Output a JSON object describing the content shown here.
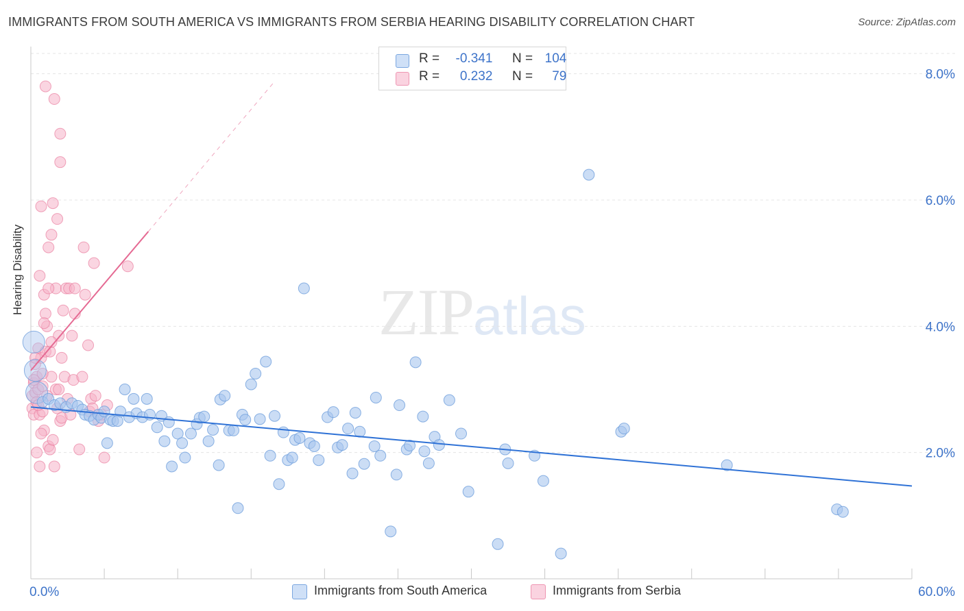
{
  "header": {
    "title": "IMMIGRANTS FROM SOUTH AMERICA VS IMMIGRANTS FROM SERBIA HEARING DISABILITY CORRELATION CHART",
    "source": "Source: ZipAtlas.com"
  },
  "watermark": {
    "zip": "ZIP",
    "atlas": "atlas"
  },
  "legend_top": {
    "rows": [
      {
        "r_label": "R =",
        "r_value": "-0.341",
        "n_label": "N =",
        "n_value": "104",
        "color": "#a9c6ef"
      },
      {
        "r_label": "R =",
        "r_value": "0.232",
        "n_label": "N =",
        "n_value": "79",
        "color": "#f5b3c8"
      }
    ]
  },
  "legend_bottom": {
    "items": [
      {
        "label": "Immigrants from South America",
        "color": "#a9c6ef"
      },
      {
        "label": "Immigrants from Serbia",
        "color": "#f5b3c8"
      }
    ]
  },
  "colors": {
    "blue_fill": "#a9c6ef",
    "blue_stroke": "#6f9fdc",
    "blue_line": "#2f72d6",
    "pink_fill": "#f5b3c8",
    "pink_stroke": "#ea7fa0",
    "pink_line": "#e56a93",
    "grid": "#e4e4e4",
    "tick_label": "#3d73c9"
  },
  "chart_data": {
    "type": "scatter",
    "title": "IMMIGRANTS FROM SOUTH AMERICA VS IMMIGRANTS FROM SERBIA HEARING DISABILITY CORRELATION CHART",
    "xlabel": "",
    "ylabel": "Hearing Disability",
    "xlim": [
      0,
      60
    ],
    "ylim": [
      0,
      8.3
    ],
    "x_tick_labels": [
      {
        "value": 0,
        "label": "0.0%"
      },
      {
        "value": 60,
        "label": "60.0%"
      }
    ],
    "y_tick_labels": [
      {
        "value": 2,
        "label": "2.0%"
      },
      {
        "value": 4,
        "label": "4.0%"
      },
      {
        "value": 6,
        "label": "6.0%"
      },
      {
        "value": 8,
        "label": "8.0%"
      }
    ],
    "grid": true,
    "legend_position": "bottom",
    "series": [
      {
        "name": "Immigrants from South America",
        "color": "#a9c6ef",
        "trend": {
          "x": [
            0,
            60
          ],
          "y": [
            2.72,
            1.47
          ]
        },
        "points": [
          [
            0.2,
            3.75
          ],
          [
            0.3,
            3.3
          ],
          [
            0.4,
            2.95
          ],
          [
            0.8,
            2.8
          ],
          [
            1.2,
            2.85
          ],
          [
            1.6,
            2.75
          ],
          [
            2.0,
            2.78
          ],
          [
            2.4,
            2.72
          ],
          [
            2.8,
            2.78
          ],
          [
            3.2,
            2.74
          ],
          [
            3.5,
            2.68
          ],
          [
            3.7,
            2.6
          ],
          [
            4.0,
            2.58
          ],
          [
            4.3,
            2.52
          ],
          [
            4.6,
            2.6
          ],
          [
            4.8,
            2.55
          ],
          [
            5.0,
            2.65
          ],
          [
            5.2,
            2.15
          ],
          [
            5.4,
            2.52
          ],
          [
            5.6,
            2.5
          ],
          [
            5.9,
            2.5
          ],
          [
            6.1,
            2.65
          ],
          [
            6.4,
            3.0
          ],
          [
            6.7,
            2.56
          ],
          [
            7.0,
            2.85
          ],
          [
            7.2,
            2.62
          ],
          [
            7.6,
            2.56
          ],
          [
            7.9,
            2.85
          ],
          [
            8.1,
            2.6
          ],
          [
            8.6,
            2.4
          ],
          [
            8.9,
            2.58
          ],
          [
            9.1,
            2.18
          ],
          [
            9.4,
            2.48
          ],
          [
            9.6,
            1.78
          ],
          [
            10.0,
            2.3
          ],
          [
            10.3,
            2.15
          ],
          [
            10.5,
            1.92
          ],
          [
            10.9,
            2.3
          ],
          [
            11.3,
            2.45
          ],
          [
            11.5,
            2.55
          ],
          [
            11.8,
            2.57
          ],
          [
            12.1,
            2.18
          ],
          [
            12.4,
            2.36
          ],
          [
            12.8,
            1.8
          ],
          [
            12.9,
            2.84
          ],
          [
            13.2,
            2.9
          ],
          [
            13.5,
            2.35
          ],
          [
            13.8,
            2.35
          ],
          [
            14.1,
            1.12
          ],
          [
            14.4,
            2.6
          ],
          [
            14.6,
            2.52
          ],
          [
            15.0,
            3.08
          ],
          [
            15.3,
            3.25
          ],
          [
            15.6,
            2.53
          ],
          [
            16.0,
            3.44
          ],
          [
            16.3,
            1.95
          ],
          [
            16.6,
            2.58
          ],
          [
            16.9,
            1.5
          ],
          [
            17.2,
            2.32
          ],
          [
            17.5,
            1.88
          ],
          [
            17.8,
            1.92
          ],
          [
            18.0,
            2.2
          ],
          [
            18.3,
            2.23
          ],
          [
            18.6,
            4.6
          ],
          [
            19.0,
            2.15
          ],
          [
            19.3,
            2.1
          ],
          [
            19.6,
            1.88
          ],
          [
            20.2,
            2.56
          ],
          [
            20.6,
            2.64
          ],
          [
            20.9,
            2.08
          ],
          [
            21.2,
            2.12
          ],
          [
            21.6,
            2.38
          ],
          [
            21.9,
            1.67
          ],
          [
            22.1,
            2.63
          ],
          [
            22.4,
            2.33
          ],
          [
            22.7,
            1.82
          ],
          [
            23.4,
            2.1
          ],
          [
            23.5,
            2.87
          ],
          [
            23.8,
            1.95
          ],
          [
            24.5,
            0.75
          ],
          [
            24.9,
            1.65
          ],
          [
            25.1,
            2.75
          ],
          [
            25.6,
            2.05
          ],
          [
            25.8,
            2.11
          ],
          [
            26.2,
            3.43
          ],
          [
            26.7,
            2.57
          ],
          [
            26.8,
            2.02
          ],
          [
            27.1,
            1.83
          ],
          [
            27.5,
            2.25
          ],
          [
            27.8,
            2.12
          ],
          [
            28.5,
            2.83
          ],
          [
            29.3,
            2.3
          ],
          [
            29.8,
            1.38
          ],
          [
            31.8,
            0.55
          ],
          [
            32.3,
            2.05
          ],
          [
            32.5,
            1.83
          ],
          [
            34.3,
            1.95
          ],
          [
            34.9,
            1.55
          ],
          [
            36.1,
            0.4
          ],
          [
            38.0,
            6.4
          ],
          [
            40.2,
            2.33
          ],
          [
            40.4,
            2.38
          ],
          [
            47.4,
            1.8
          ],
          [
            54.9,
            1.1
          ],
          [
            55.3,
            1.06
          ]
        ]
      },
      {
        "name": "Immigrants from Serbia",
        "color": "#f5b3c8",
        "trend": {
          "x": [
            0,
            8.0
          ],
          "y": [
            3.3,
            5.5
          ]
        },
        "trend_dashed": {
          "x": [
            8.0,
            16.5
          ],
          "y": [
            5.5,
            7.85
          ]
        },
        "points": [
          [
            0.1,
            2.9
          ],
          [
            0.1,
            2.7
          ],
          [
            0.2,
            3.1
          ],
          [
            0.2,
            2.6
          ],
          [
            0.3,
            3.4
          ],
          [
            0.3,
            2.95
          ],
          [
            0.4,
            3.2
          ],
          [
            0.4,
            2.8
          ],
          [
            0.5,
            3.65
          ],
          [
            0.5,
            3.0
          ],
          [
            0.6,
            1.78
          ],
          [
            0.6,
            2.6
          ],
          [
            0.7,
            5.9
          ],
          [
            0.7,
            3.5
          ],
          [
            0.8,
            3.05
          ],
          [
            0.8,
            2.65
          ],
          [
            0.9,
            4.5
          ],
          [
            0.9,
            2.35
          ],
          [
            1.0,
            4.2
          ],
          [
            1.0,
            3.6
          ],
          [
            1.1,
            4.0
          ],
          [
            1.1,
            2.9
          ],
          [
            1.2,
            5.25
          ],
          [
            1.2,
            2.1
          ],
          [
            1.3,
            3.6
          ],
          [
            1.3,
            2.05
          ],
          [
            1.4,
            5.45
          ],
          [
            1.4,
            3.2
          ],
          [
            1.5,
            5.95
          ],
          [
            1.5,
            2.2
          ],
          [
            1.6,
            7.6
          ],
          [
            1.6,
            1.78
          ],
          [
            1.7,
            4.6
          ],
          [
            1.7,
            3.0
          ],
          [
            1.8,
            5.7
          ],
          [
            1.8,
            2.7
          ],
          [
            1.9,
            3.85
          ],
          [
            1.9,
            3.0
          ],
          [
            2.0,
            6.6
          ],
          [
            2.0,
            2.5
          ],
          [
            2.1,
            3.5
          ],
          [
            2.1,
            2.55
          ],
          [
            2.2,
            4.25
          ],
          [
            2.3,
            3.2
          ],
          [
            2.4,
            4.6
          ],
          [
            2.5,
            2.85
          ],
          [
            2.6,
            4.6
          ],
          [
            2.7,
            2.6
          ],
          [
            2.8,
            3.85
          ],
          [
            2.9,
            3.15
          ],
          [
            3.0,
            4.2
          ],
          [
            1.0,
            7.8
          ],
          [
            2.0,
            7.05
          ],
          [
            3.0,
            4.6
          ],
          [
            3.3,
            2.05
          ],
          [
            3.5,
            3.2
          ],
          [
            3.6,
            5.25
          ],
          [
            3.7,
            4.5
          ],
          [
            3.9,
            3.7
          ],
          [
            4.0,
            2.65
          ],
          [
            4.1,
            2.85
          ],
          [
            4.2,
            2.7
          ],
          [
            4.3,
            5.0
          ],
          [
            4.4,
            2.9
          ],
          [
            4.6,
            2.5
          ],
          [
            4.8,
            2.6
          ],
          [
            5.0,
            1.92
          ],
          [
            5.2,
            2.75
          ],
          [
            0.6,
            4.8
          ],
          [
            0.8,
            3.25
          ],
          [
            0.9,
            4.05
          ],
          [
            1.2,
            4.6
          ],
          [
            1.4,
            3.75
          ],
          [
            0.3,
            3.5
          ],
          [
            0.5,
            2.75
          ],
          [
            0.2,
            3.15
          ],
          [
            6.6,
            4.95
          ],
          [
            0.4,
            2.0
          ],
          [
            0.7,
            2.3
          ]
        ]
      }
    ]
  }
}
